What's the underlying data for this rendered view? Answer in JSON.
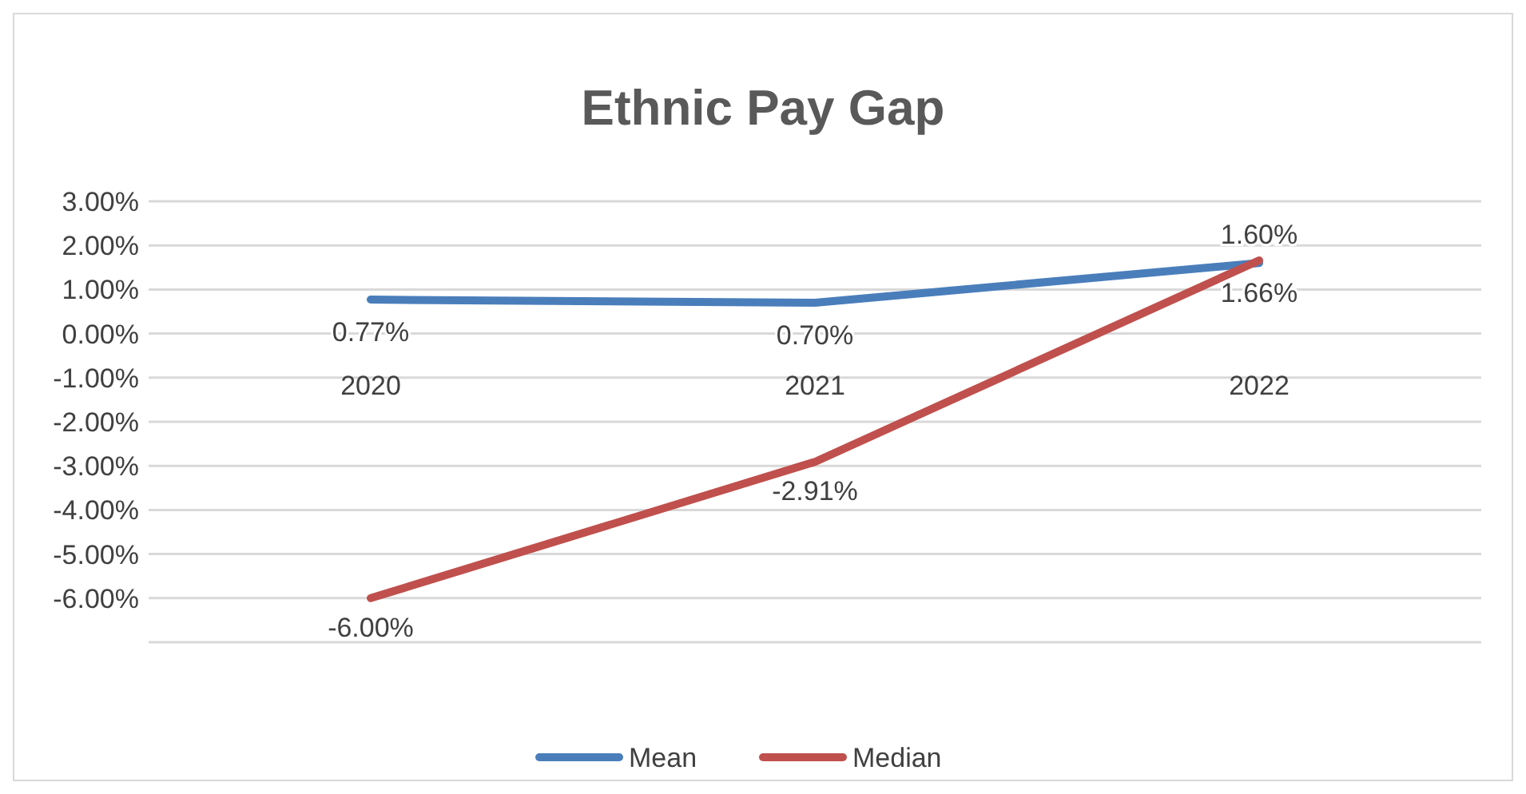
{
  "chart_data": {
    "type": "line",
    "title": "Ethnic Pay Gap",
    "categories": [
      "2020",
      "2021",
      "2022"
    ],
    "series": [
      {
        "name": "Mean",
        "color": "#4a7ebb",
        "values": [
          0.77,
          0.7,
          1.6
        ],
        "value_labels": [
          "0.77%",
          "0.70%",
          "1.60%"
        ]
      },
      {
        "name": "Median",
        "color": "#c0504d",
        "values": [
          -6.0,
          -2.91,
          1.66
        ],
        "value_labels": [
          "-6.00%",
          "-2.91%",
          "1.66%"
        ]
      }
    ],
    "ylim": [
      -7,
      3
    ],
    "yticks": [
      {
        "value": -7,
        "label": null
      },
      {
        "value": -6,
        "label": "-6.00%"
      },
      {
        "value": -5,
        "label": "-5.00%"
      },
      {
        "value": -4,
        "label": "-4.00%"
      },
      {
        "value": -3,
        "label": "-3.00%"
      },
      {
        "value": -2,
        "label": "-2.00%"
      },
      {
        "value": -1,
        "label": "-1.00%"
      },
      {
        "value": 0,
        "label": "0.00%"
      },
      {
        "value": 1,
        "label": "1.00%"
      },
      {
        "value": 2,
        "label": "2.00%"
      },
      {
        "value": 3,
        "label": "3.00%"
      }
    ],
    "grid": "y",
    "legend": "bottom",
    "marker": "none",
    "line_style": "solid"
  }
}
